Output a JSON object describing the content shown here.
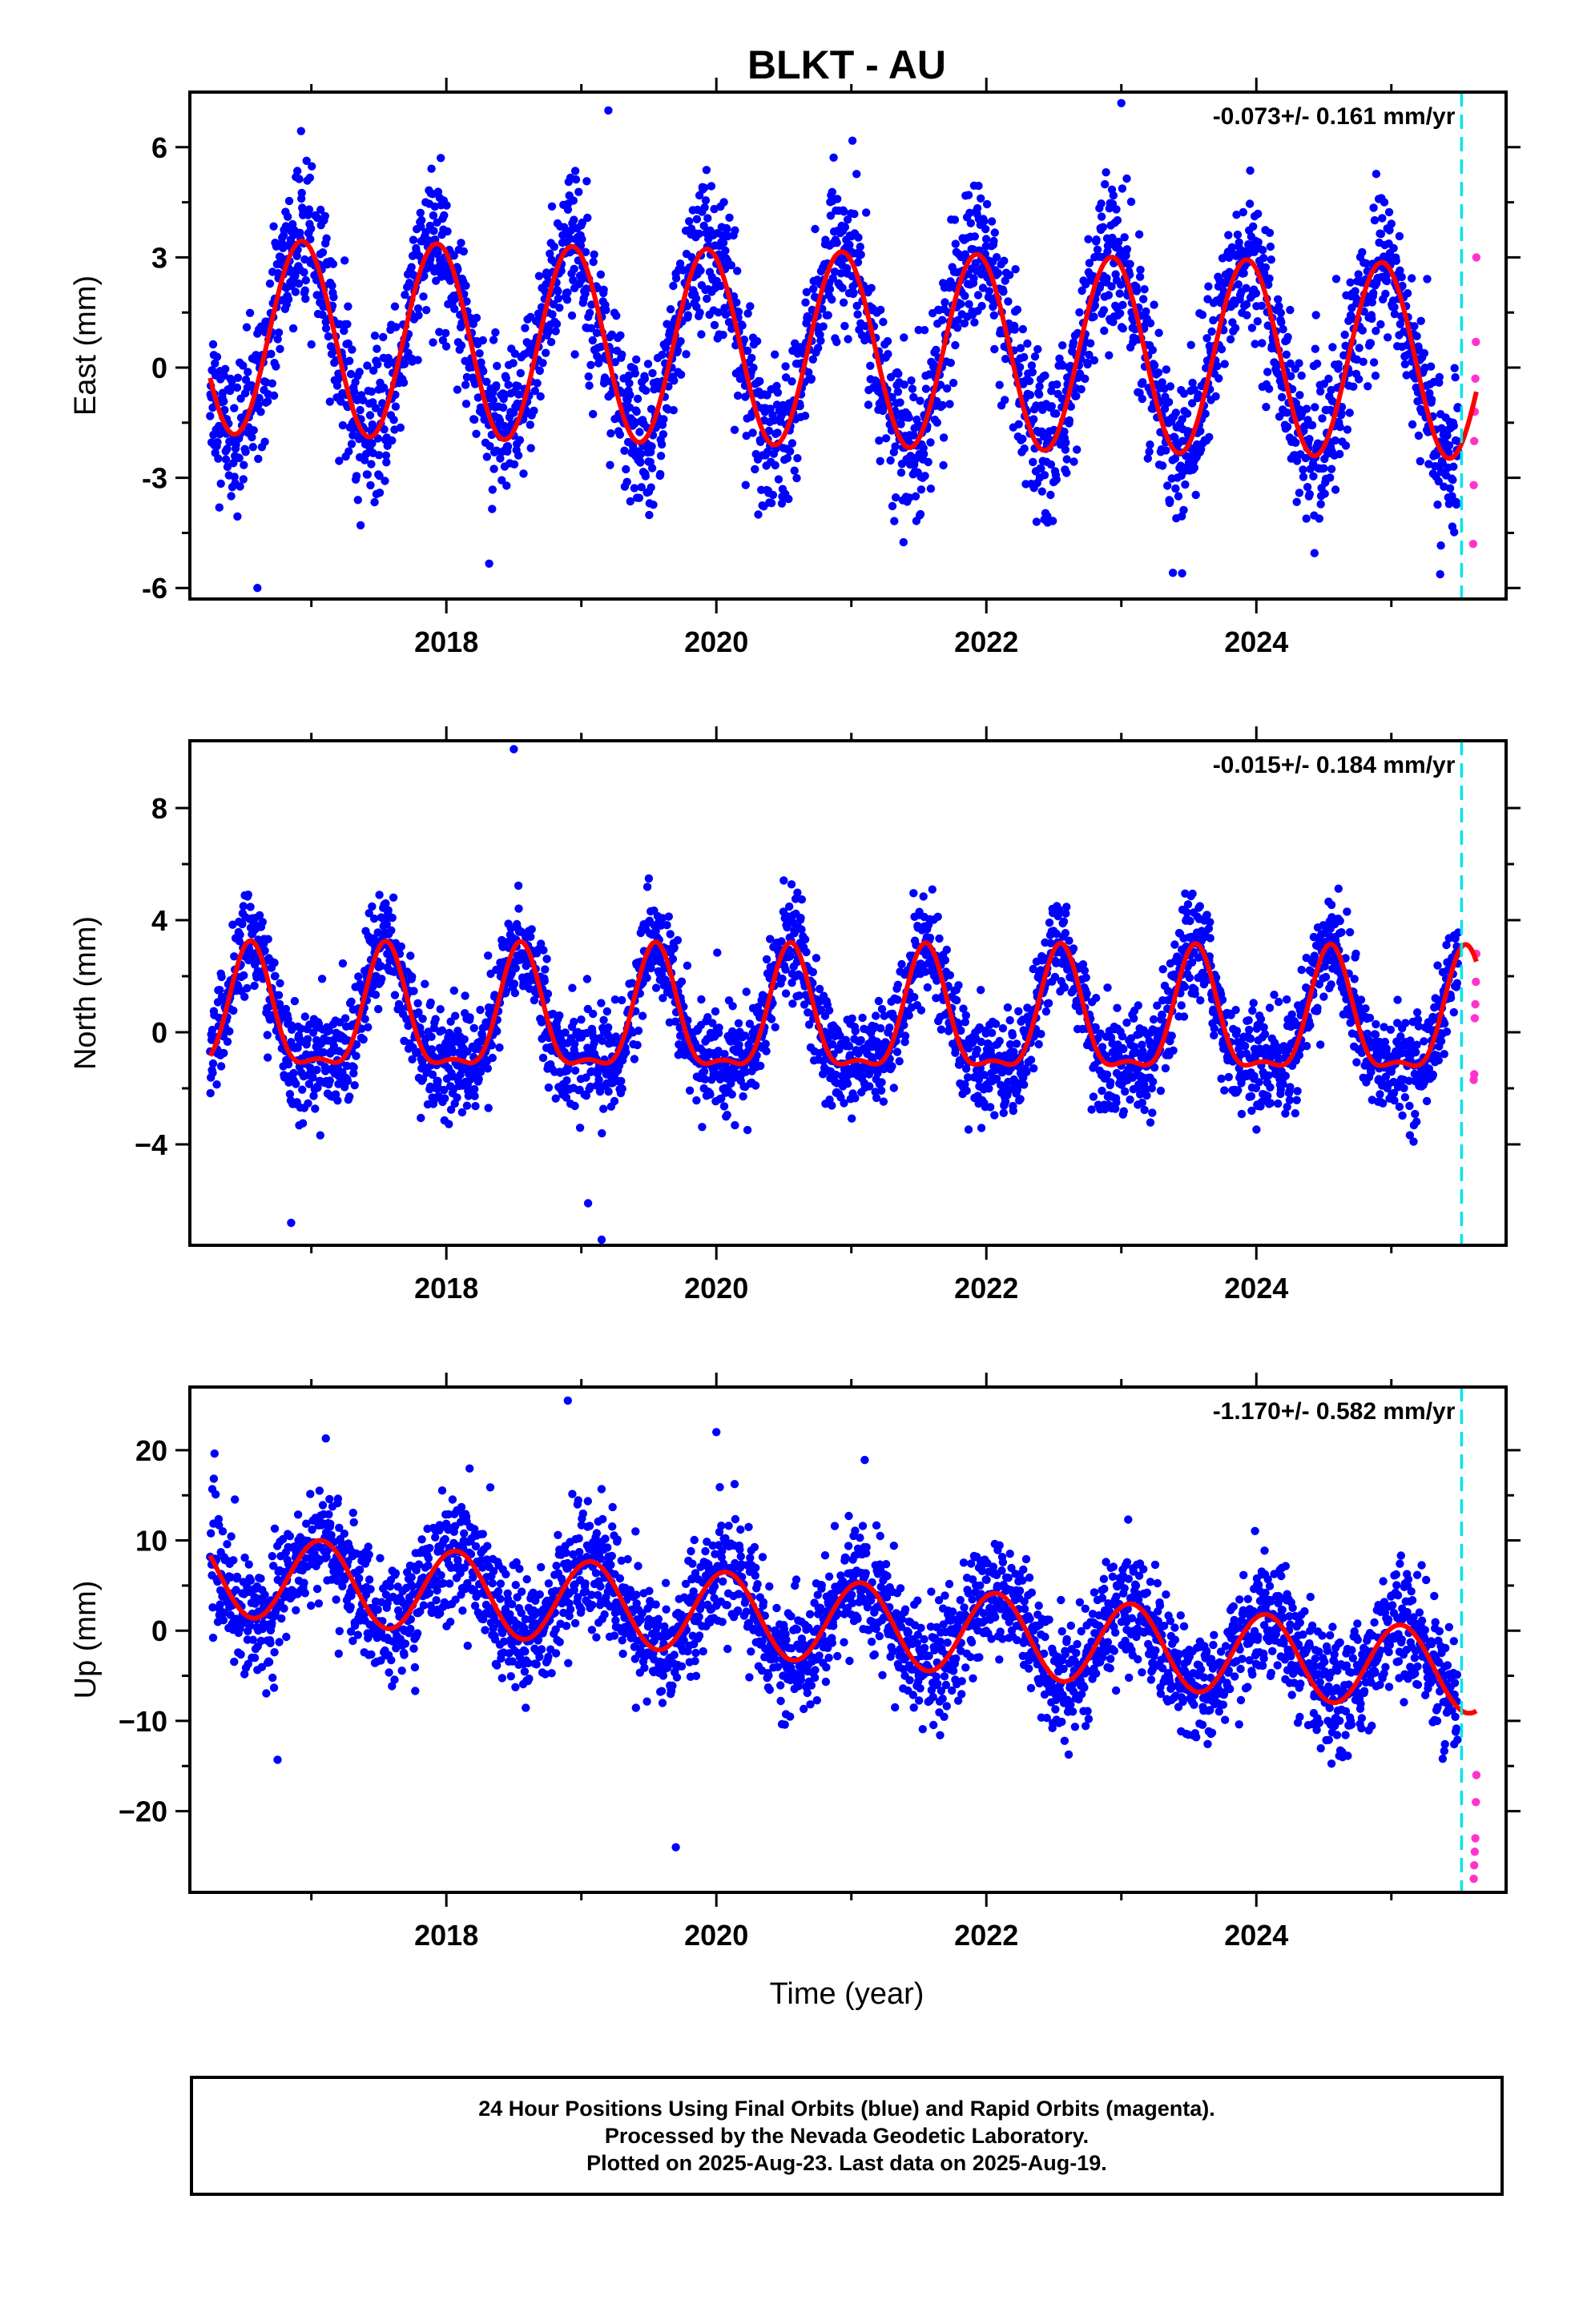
{
  "title": "BLKT - AU",
  "colors": {
    "final_points": "#0000ff",
    "rapid_points": "#ff33cc",
    "model_curve": "#ff0000",
    "break_line": "#00e5ee",
    "frame": "#000000"
  },
  "xlabel": "Time (year)",
  "chart_data": [
    {
      "type": "scatter",
      "component": "East",
      "ylabel": "East (mm)",
      "rate_label": "-0.073+/- 0.161 mm/yr",
      "xlim": [
        2016.1,
        2025.85
      ],
      "ylim": [
        -6.3,
        7.5
      ],
      "x_ticks": [
        2018,
        2020,
        2022,
        2024
      ],
      "y_ticks": [
        -6,
        -3,
        0,
        3,
        6
      ],
      "y_tick_labels": [
        "-6",
        "-3",
        "0",
        "3",
        "6"
      ],
      "data_start": 2016.25,
      "last_final": 2025.5,
      "data_end": 2025.63,
      "break_year": 2025.52,
      "model": {
        "offset": 0.5,
        "rate": -0.073,
        "annual_amp": 2.65,
        "annual_peak": 0.93,
        "semiannual_amp": 0.0,
        "semiannual_peak": 0.0,
        "ref_year": 2021.0
      },
      "scatter_sd": 1.0,
      "spread_hint": "approx. +/-1 mm scatter about model, samples every ~1 day",
      "rapid_values": [
        3.0,
        0.7,
        -0.3,
        -1.2,
        -2.0,
        -3.2,
        -4.8
      ],
      "outliers": [
        [
          2019.2,
          7.0
        ],
        [
          2023.0,
          7.2
        ],
        [
          2016.6,
          -6.0
        ],
        [
          2023.45,
          -5.6
        ]
      ]
    },
    {
      "type": "scatter",
      "component": "North",
      "ylabel": "North (mm)",
      "rate_label": "-0.015+/- 0.184 mm/yr",
      "xlim": [
        2016.1,
        2025.85
      ],
      "ylim": [
        -7.6,
        10.4
      ],
      "x_ticks": [
        2018,
        2020,
        2022,
        2024
      ],
      "y_ticks": [
        -4,
        0,
        4,
        8
      ],
      "y_tick_labels": [
        "−4",
        "0",
        "4",
        "8"
      ],
      "data_start": 2016.25,
      "last_final": 2025.5,
      "data_end": 2025.63,
      "break_year": 2025.52,
      "model": {
        "offset": 0.35,
        "rate": -0.015,
        "annual_amp": 2.1,
        "annual_peak": 0.55,
        "semiannual_amp": 0.75,
        "semiannual_peak": 0.05,
        "ref_year": 2021.0
      },
      "scatter_sd": 0.9,
      "spread_hint": "approx. +/-1 mm scatter about model",
      "rapid_values": [
        2.8,
        1.8,
        1.0,
        0.5,
        -1.5,
        -1.7
      ],
      "outliers": [
        [
          2018.5,
          10.1
        ],
        [
          2016.85,
          -6.8
        ],
        [
          2019.15,
          -7.4
        ],
        [
          2019.05,
          -6.1
        ]
      ]
    },
    {
      "type": "scatter",
      "component": "Up",
      "ylabel": "Up (mm)",
      "rate_label": "-1.170+/- 0.582 mm/yr",
      "xlim": [
        2016.1,
        2025.85
      ],
      "ylim": [
        -29,
        27
      ],
      "x_ticks": [
        2018,
        2020,
        2022,
        2024
      ],
      "x_tick_labels": [
        "2018",
        "2020",
        "2022",
        "2024"
      ],
      "y_ticks": [
        -20,
        -10,
        0,
        10,
        20
      ],
      "y_tick_labels": [
        "−20",
        "−10",
        "0",
        "10",
        "20"
      ],
      "data_start": 2016.25,
      "last_final": 2025.5,
      "data_end": 2025.63,
      "break_year": 2025.52,
      "model": {
        "offset": 0.8,
        "rate": -1.17,
        "annual_amp": 4.6,
        "annual_peak": 0.07,
        "semiannual_amp": 0.0,
        "semiannual_peak": 0.0,
        "ref_year": 2021.0
      },
      "scatter_sd": 3.2,
      "spread_hint": "approx. +/-4 mm scatter about model",
      "rapid_values": [
        -16,
        -19,
        -23,
        -24.5,
        -26,
        -27.5
      ],
      "outliers": [
        [
          2018.9,
          25.5
        ],
        [
          2020.0,
          22.0
        ],
        [
          2019.7,
          -24.0
        ],
        [
          2016.75,
          -14.3
        ]
      ]
    }
  ],
  "footer": {
    "line1": "24 Hour Positions Using Final Orbits (blue) and Rapid Orbits (magenta).",
    "line2": "Processed by the Nevada Geodetic Laboratory.",
    "line3": "Plotted on 2025-Aug-23. Last data on 2025-Aug-19."
  }
}
